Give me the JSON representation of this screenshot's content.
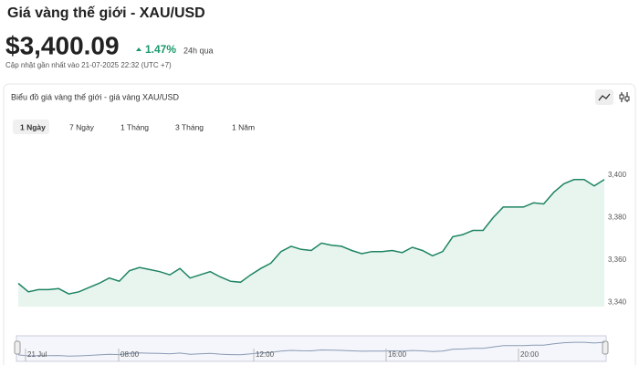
{
  "header": {
    "title": "Giá vàng thế giới - XAU/USD",
    "price": "$3,400.09",
    "change": "1.47%",
    "period": "24h qua",
    "updated": "Cập nhật gần nhất vào 21-07-2025 22:32 (UTC +7)"
  },
  "panel": {
    "title": "Biểu đồ giá vàng thế giới - giá vàng XAU/USD",
    "tabs": [
      "1 Ngày",
      "7 Ngày",
      "1 Tháng",
      "3 Tháng",
      "1 Năm"
    ],
    "active_tab": 0
  },
  "chart_data": {
    "type": "area",
    "color": "#1e8463",
    "values": [
      3349,
      3345,
      3346,
      3346,
      3346.5,
      3344,
      3345,
      3347,
      3349,
      3351.5,
      3350,
      3355,
      3356.5,
      3355.5,
      3354.5,
      3353,
      3356,
      3351.5,
      3353,
      3354.5,
      3352,
      3350,
      3349.5,
      3353,
      3356,
      3358.5,
      3364,
      3366.5,
      3365,
      3364.5,
      3368,
      3367,
      3366.5,
      3364.5,
      3363,
      3364,
      3364,
      3364.5,
      3363.5,
      3366,
      3364.5,
      3362,
      3364,
      3371,
      3372,
      3374,
      3374,
      3380,
      3385,
      3385,
      3385,
      3387,
      3386.5,
      3392,
      3396,
      3398,
      3398,
      3395,
      3398
    ],
    "ylim": [
      3338,
      3416
    ],
    "yticks": [
      {
        "value": 3340,
        "label": "3,340"
      },
      {
        "value": 3360,
        "label": "3,360"
      },
      {
        "value": 3380,
        "label": "3,380"
      },
      {
        "value": 3400,
        "label": "3,400"
      }
    ],
    "grid": false,
    "navigator_labels": [
      "21 Jul",
      "08:00",
      "12:00",
      "16:00",
      "20:00"
    ]
  }
}
